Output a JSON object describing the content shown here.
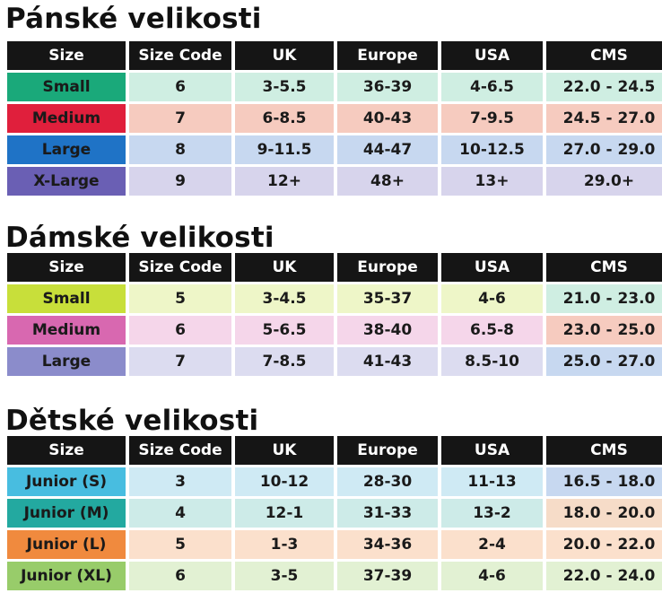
{
  "headers": [
    "Size",
    "Size Code",
    "UK",
    "Europe",
    "USA",
    "CMS"
  ],
  "sections": [
    {
      "title": "Pánské velikosti",
      "rows": [
        {
          "label": "Small",
          "code": "6",
          "uk": "3-5.5",
          "eu": "36-39",
          "usa": "4-6.5",
          "cms": "22.0 - 24.5",
          "label_color": "#1aa97a",
          "tint": "#cfeee2",
          "cms_tint": "#cfeee2"
        },
        {
          "label": "Medium",
          "code": "7",
          "uk": "6-8.5",
          "eu": "40-43",
          "usa": "7-9.5",
          "cms": "24.5 - 27.0",
          "label_color": "#e01f3c",
          "tint": "#f6cbbf",
          "cms_tint": "#f6cbbf"
        },
        {
          "label": "Large",
          "code": "8",
          "uk": "9-11.5",
          "eu": "44-47",
          "usa": "10-12.5",
          "cms": "27.0 - 29.0",
          "label_color": "#1f73c6",
          "tint": "#c7d8f0",
          "cms_tint": "#c7d8f0"
        },
        {
          "label": "X-Large",
          "code": "9",
          "uk": "12+",
          "eu": "48+",
          "usa": "13+",
          "cms": "29.0+",
          "label_color": "#6a5fb4",
          "tint": "#d7d4ec",
          "cms_tint": "#d7d4ec"
        }
      ]
    },
    {
      "title": "Dámské velikosti",
      "rows": [
        {
          "label": "Small",
          "code": "5",
          "uk": "3-4.5",
          "eu": "35-37",
          "usa": "4-6",
          "cms": "21.0 - 23.0",
          "label_color": "#c8df3a",
          "tint": "#eef6c8",
          "cms_tint": "#cfeee2"
        },
        {
          "label": "Medium",
          "code": "6",
          "uk": "5-6.5",
          "eu": "38-40",
          "usa": "6.5-8",
          "cms": "23.0 - 25.0",
          "label_color": "#d868b0",
          "tint": "#f5d6ea",
          "cms_tint": "#f6cbbf"
        },
        {
          "label": "Large",
          "code": "7",
          "uk": "7-8.5",
          "eu": "41-43",
          "usa": "8.5-10",
          "cms": "25.0 - 27.0",
          "label_color": "#8b8ccb",
          "tint": "#dcdcf0",
          "cms_tint": "#c7d8f0"
        }
      ]
    },
    {
      "title": "Dětské velikosti",
      "rows": [
        {
          "label": "Junior (S)",
          "code": "3",
          "uk": "10-12",
          "eu": "28-30",
          "usa": "11-13",
          "cms": "16.5 - 18.0",
          "label_color": "#48bde0",
          "tint": "#cfeaf4",
          "cms_tint": "#c7d8f0"
        },
        {
          "label": "Junior (M)",
          "code": "4",
          "uk": "12-1",
          "eu": "31-33",
          "usa": "13-2",
          "cms": "18.0 - 20.0",
          "label_color": "#23a9a0",
          "tint": "#cdebe8",
          "cms_tint": "#f6dcc8"
        },
        {
          "label": "Junior (L)",
          "code": "5",
          "uk": "1-3",
          "eu": "34-36",
          "usa": "2-4",
          "cms": "20.0 - 22.0",
          "label_color": "#f08a3e",
          "tint": "#fbe0cc",
          "cms_tint": "#fbe0cc"
        },
        {
          "label": "Junior (XL)",
          "code": "6",
          "uk": "3-5",
          "eu": "37-39",
          "usa": "4-6",
          "cms": "22.0 - 24.0",
          "label_color": "#98cc6a",
          "tint": "#e2f1d3",
          "cms_tint": "#e2f1d3"
        }
      ]
    }
  ]
}
